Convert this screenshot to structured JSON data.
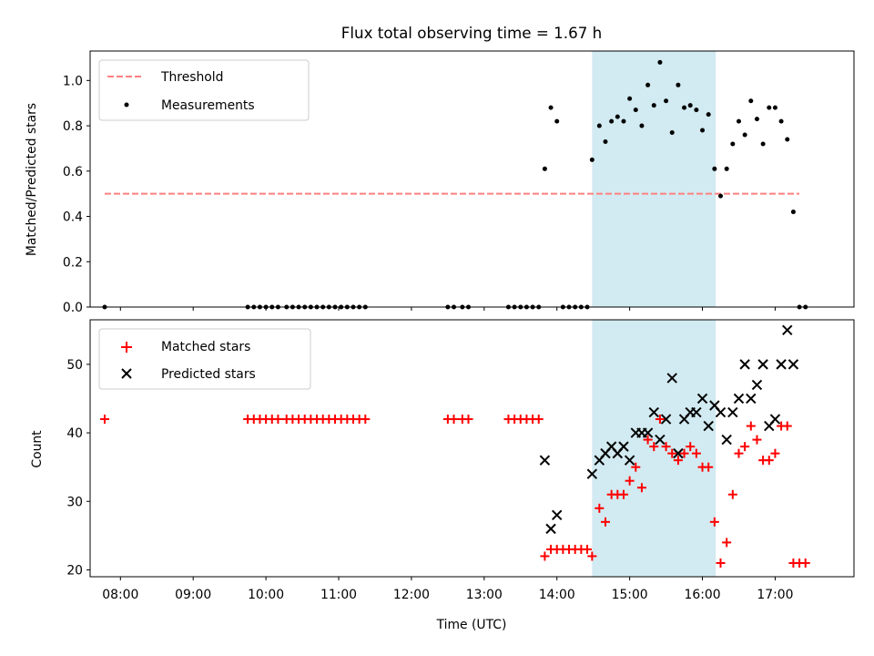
{
  "chart_data": [
    {
      "type": "scatter",
      "title": "Flux total observing time = 1.67 h",
      "xlabel": "",
      "ylabel": "Matched/Predicted stars",
      "xlim": [
        "07:35",
        "18:05"
      ],
      "ylim": [
        0,
        1.13
      ],
      "yticks": [
        "0.0",
        "0.2",
        "0.4",
        "0.6",
        "0.8",
        "1.0"
      ],
      "grid": false,
      "legend": "upper left",
      "shaded_span": {
        "x": [
          "14:29",
          "16:11"
        ],
        "color": "#add8e6"
      },
      "threshold": {
        "name": "Threshold",
        "y": 0.5,
        "x": [
          "07:47",
          "17:20"
        ],
        "color": "#ff8080",
        "style": "dashed"
      },
      "series": [
        {
          "name": "Measurements",
          "marker": "dot",
          "color": "#000000",
          "points": [
            [
              "07:47",
              0.0
            ],
            [
              "09:45",
              0.0
            ],
            [
              "09:50",
              0.0
            ],
            [
              "09:55",
              0.0
            ],
            [
              "10:00",
              0.0
            ],
            [
              "10:05",
              0.0
            ],
            [
              "10:10",
              0.0
            ],
            [
              "10:17",
              0.0
            ],
            [
              "10:22",
              0.0
            ],
            [
              "10:27",
              0.0
            ],
            [
              "10:32",
              0.0
            ],
            [
              "10:37",
              0.0
            ],
            [
              "10:42",
              0.0
            ],
            [
              "10:47",
              0.0
            ],
            [
              "10:52",
              0.0
            ],
            [
              "10:57",
              0.0
            ],
            [
              "11:02",
              0.0
            ],
            [
              "11:07",
              0.0
            ],
            [
              "11:12",
              0.0
            ],
            [
              "11:17",
              0.0
            ],
            [
              "11:22",
              0.0
            ],
            [
              "12:30",
              0.0
            ],
            [
              "12:35",
              0.0
            ],
            [
              "12:42",
              0.0
            ],
            [
              "12:47",
              0.0
            ],
            [
              "13:20",
              0.0
            ],
            [
              "13:25",
              0.0
            ],
            [
              "13:30",
              0.0
            ],
            [
              "13:35",
              0.0
            ],
            [
              "13:40",
              0.0
            ],
            [
              "13:45",
              0.0
            ],
            [
              "13:50",
              0.61
            ],
            [
              "13:55",
              0.88
            ],
            [
              "14:00",
              0.82
            ],
            [
              "14:05",
              0.0
            ],
            [
              "14:10",
              0.0
            ],
            [
              "14:15",
              0.0
            ],
            [
              "14:20",
              0.0
            ],
            [
              "14:25",
              0.0
            ],
            [
              "14:29",
              0.65
            ],
            [
              "14:35",
              0.8
            ],
            [
              "14:40",
              0.73
            ],
            [
              "14:45",
              0.82
            ],
            [
              "14:50",
              0.84
            ],
            [
              "14:55",
              0.82
            ],
            [
              "15:00",
              0.92
            ],
            [
              "15:05",
              0.87
            ],
            [
              "15:10",
              0.8
            ],
            [
              "15:15",
              0.98
            ],
            [
              "15:20",
              0.89
            ],
            [
              "15:25",
              1.08
            ],
            [
              "15:30",
              0.91
            ],
            [
              "15:35",
              0.77
            ],
            [
              "15:40",
              0.98
            ],
            [
              "15:45",
              0.88
            ],
            [
              "15:50",
              0.89
            ],
            [
              "15:55",
              0.87
            ],
            [
              "16:00",
              0.78
            ],
            [
              "16:05",
              0.85
            ],
            [
              "16:10",
              0.61
            ],
            [
              "16:15",
              0.49
            ],
            [
              "16:20",
              0.61
            ],
            [
              "16:25",
              0.72
            ],
            [
              "16:30",
              0.82
            ],
            [
              "16:35",
              0.76
            ],
            [
              "16:40",
              0.91
            ],
            [
              "16:45",
              0.83
            ],
            [
              "16:50",
              0.72
            ],
            [
              "16:55",
              0.88
            ],
            [
              "17:00",
              0.88
            ],
            [
              "17:05",
              0.82
            ],
            [
              "17:10",
              0.74
            ],
            [
              "17:15",
              0.42
            ],
            [
              "17:20",
              0.0
            ],
            [
              "17:25",
              0.0
            ]
          ]
        }
      ]
    },
    {
      "type": "scatter",
      "title": "",
      "xlabel": "Time (UTC)",
      "ylabel": "Count",
      "xlim": [
        "07:35",
        "18:05"
      ],
      "ylim": [
        19,
        56.5
      ],
      "xticks": [
        "08:00",
        "09:00",
        "10:00",
        "11:00",
        "12:00",
        "13:00",
        "14:00",
        "15:00",
        "16:00",
        "17:00"
      ],
      "yticks": [
        "20",
        "30",
        "40",
        "50"
      ],
      "grid": false,
      "legend": "upper left",
      "shaded_span": {
        "x": [
          "14:29",
          "16:11"
        ],
        "color": "#add8e6"
      },
      "series": [
        {
          "name": "Matched stars",
          "marker": "plus",
          "color": "#ff0000",
          "points": [
            [
              "07:47",
              42
            ],
            [
              "09:45",
              42
            ],
            [
              "09:50",
              42
            ],
            [
              "09:55",
              42
            ],
            [
              "10:00",
              42
            ],
            [
              "10:05",
              42
            ],
            [
              "10:10",
              42
            ],
            [
              "10:17",
              42
            ],
            [
              "10:22",
              42
            ],
            [
              "10:27",
              42
            ],
            [
              "10:32",
              42
            ],
            [
              "10:37",
              42
            ],
            [
              "10:42",
              42
            ],
            [
              "10:47",
              42
            ],
            [
              "10:52",
              42
            ],
            [
              "10:57",
              42
            ],
            [
              "11:02",
              42
            ],
            [
              "11:07",
              42
            ],
            [
              "11:12",
              42
            ],
            [
              "11:17",
              42
            ],
            [
              "11:22",
              42
            ],
            [
              "12:30",
              42
            ],
            [
              "12:35",
              42
            ],
            [
              "12:42",
              42
            ],
            [
              "12:47",
              42
            ],
            [
              "13:20",
              42
            ],
            [
              "13:25",
              42
            ],
            [
              "13:30",
              42
            ],
            [
              "13:35",
              42
            ],
            [
              "13:40",
              42
            ],
            [
              "13:45",
              42
            ],
            [
              "13:50",
              22
            ],
            [
              "13:55",
              23
            ],
            [
              "14:00",
              23
            ],
            [
              "14:05",
              23
            ],
            [
              "14:10",
              23
            ],
            [
              "14:15",
              23
            ],
            [
              "14:20",
              23
            ],
            [
              "14:25",
              23
            ],
            [
              "14:29",
              22
            ],
            [
              "14:35",
              29
            ],
            [
              "14:40",
              27
            ],
            [
              "14:45",
              31
            ],
            [
              "14:50",
              31
            ],
            [
              "14:55",
              31
            ],
            [
              "15:00",
              33
            ],
            [
              "15:05",
              35
            ],
            [
              "15:10",
              32
            ],
            [
              "15:15",
              39
            ],
            [
              "15:20",
              38
            ],
            [
              "15:25",
              42
            ],
            [
              "15:30",
              38
            ],
            [
              "15:35",
              37
            ],
            [
              "15:40",
              36
            ],
            [
              "15:45",
              37
            ],
            [
              "15:50",
              38
            ],
            [
              "15:55",
              37
            ],
            [
              "16:00",
              35
            ],
            [
              "16:05",
              35
            ],
            [
              "16:10",
              27
            ],
            [
              "16:15",
              21
            ],
            [
              "16:20",
              24
            ],
            [
              "16:25",
              31
            ],
            [
              "16:30",
              37
            ],
            [
              "16:35",
              38
            ],
            [
              "16:40",
              41
            ],
            [
              "16:45",
              39
            ],
            [
              "16:50",
              36
            ],
            [
              "16:55",
              36
            ],
            [
              "17:00",
              37
            ],
            [
              "17:05",
              41
            ],
            [
              "17:10",
              41
            ],
            [
              "17:15",
              21
            ],
            [
              "17:20",
              21
            ],
            [
              "17:25",
              21
            ]
          ]
        },
        {
          "name": "Predicted stars",
          "marker": "x",
          "color": "#000000",
          "points": [
            [
              "13:50",
              36
            ],
            [
              "13:55",
              26
            ],
            [
              "14:00",
              28
            ],
            [
              "14:29",
              34
            ],
            [
              "14:35",
              36
            ],
            [
              "14:40",
              37
            ],
            [
              "14:45",
              38
            ],
            [
              "14:50",
              37
            ],
            [
              "14:55",
              38
            ],
            [
              "15:00",
              36
            ],
            [
              "15:05",
              40
            ],
            [
              "15:10",
              40
            ],
            [
              "15:15",
              40
            ],
            [
              "15:20",
              43
            ],
            [
              "15:25",
              39
            ],
            [
              "15:30",
              42
            ],
            [
              "15:35",
              48
            ],
            [
              "15:40",
              37
            ],
            [
              "15:45",
              42
            ],
            [
              "15:50",
              43
            ],
            [
              "15:55",
              43
            ],
            [
              "16:00",
              45
            ],
            [
              "16:05",
              41
            ],
            [
              "16:10",
              44
            ],
            [
              "16:15",
              43
            ],
            [
              "16:20",
              39
            ],
            [
              "16:25",
              43
            ],
            [
              "16:30",
              45
            ],
            [
              "16:35",
              50
            ],
            [
              "16:40",
              45
            ],
            [
              "16:45",
              47
            ],
            [
              "16:50",
              50
            ],
            [
              "16:55",
              41
            ],
            [
              "17:00",
              42
            ],
            [
              "17:05",
              50
            ],
            [
              "17:10",
              55
            ],
            [
              "17:15",
              50
            ]
          ]
        }
      ]
    }
  ],
  "legends": {
    "top": [
      "Threshold",
      "Measurements"
    ],
    "bottom": [
      "Matched stars",
      "Predicted stars"
    ]
  }
}
